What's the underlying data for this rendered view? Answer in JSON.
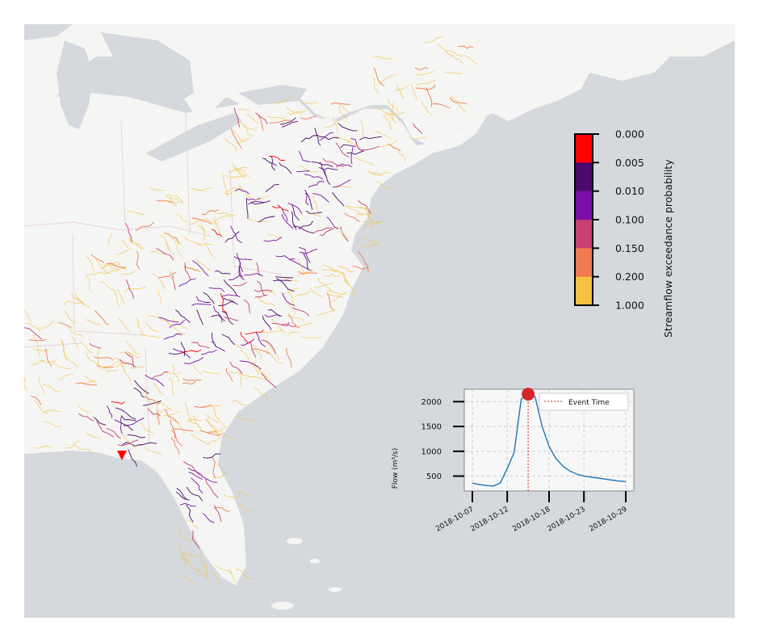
{
  "colorbar": {
    "label": "Streamflow exceedance probability",
    "ticks": [
      "0.000",
      "0.005",
      "0.010",
      "0.100",
      "0.150",
      "0.200",
      "1.000"
    ],
    "colors": [
      "#ff0000",
      "#4b0a6c",
      "#7a0ea8",
      "#c73f73",
      "#ef7b50",
      "#f5c142"
    ]
  },
  "gauge_marker": {
    "color": "#ff0000",
    "icon": "triangle-down-icon"
  },
  "land_colors": {
    "land": "#f5f5f3",
    "water": "#d5d9dd",
    "borders": "#e3c9cf"
  },
  "chart_data": {
    "type": "line",
    "ylabel": "Flow (m³/s)",
    "xlabel": "",
    "x": [
      "2018-10-07",
      "2018-10-08",
      "2018-10-09",
      "2018-10-10",
      "2018-10-11",
      "2018-10-12",
      "2018-10-13",
      "2018-10-14",
      "2018-10-15",
      "2018-10-16",
      "2018-10-17",
      "2018-10-18",
      "2018-10-19",
      "2018-10-20",
      "2018-10-21",
      "2018-10-22",
      "2018-10-23",
      "2018-10-24",
      "2018-10-25",
      "2018-10-26",
      "2018-10-27",
      "2018-10-28",
      "2018-10-29"
    ],
    "series": [
      {
        "values": [
          360,
          330,
          310,
          300,
          360,
          650,
          980,
          2050,
          2150,
          2100,
          1500,
          1100,
          850,
          700,
          600,
          540,
          500,
          480,
          460,
          440,
          420,
          400,
          390
        ],
        "color": "#1f77b4"
      }
    ],
    "event": {
      "date": "2018-10-15",
      "value": 2150,
      "label": "Event Time",
      "color": "#d62728"
    },
    "xticks": [
      "2018-10-07",
      "2018-10-12",
      "2018-10-18",
      "2018-10-23",
      "2018-10-29"
    ],
    "yticks": [
      500,
      1000,
      1500,
      2000
    ],
    "ylim": [
      200,
      2250
    ],
    "grid": true,
    "legend": "top-right"
  }
}
